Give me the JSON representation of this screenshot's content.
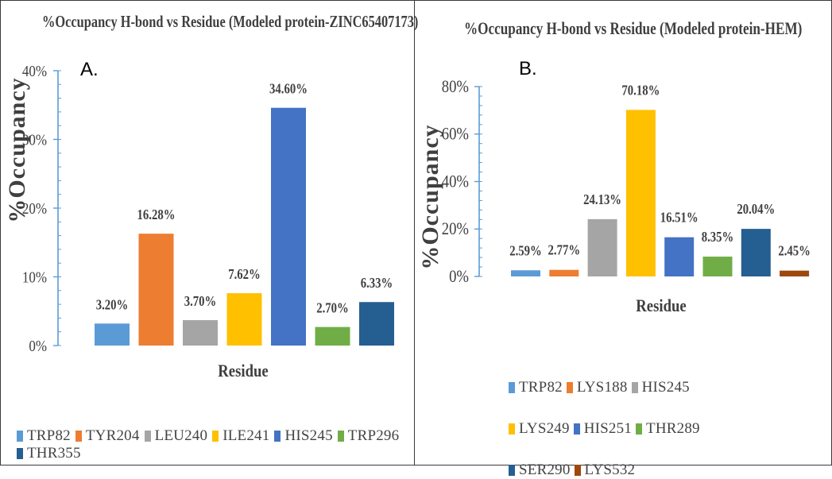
{
  "chart_data": [
    {
      "type": "bar",
      "panel_label": "A.",
      "title": "%Occupancy H-bond vs Residue (Modeled protein-ZINC65407173)",
      "xlabel": "Residue",
      "ylabel": "%Occupancy",
      "ylim": [
        0,
        40
      ],
      "yticks": [
        "0%",
        "10%",
        "20%",
        "30%",
        "40%"
      ],
      "grid": false,
      "legend_position": "bottom",
      "categories": [
        "TRP82",
        "TYR204",
        "LEU240",
        "ILE241",
        "HIS245",
        "TRP296",
        "THR355"
      ],
      "values": [
        3.2,
        16.28,
        3.7,
        7.62,
        34.6,
        2.7,
        6.33
      ],
      "data_labels": [
        "3.20%",
        "16.28%",
        "3.70%",
        "7.62%",
        "34.60%",
        "2.70%",
        "6.33%"
      ],
      "colors": [
        "#5b9bd5",
        "#ed7d31",
        "#a5a5a5",
        "#ffc000",
        "#4472c4",
        "#70ad47",
        "#255e91"
      ]
    },
    {
      "type": "bar",
      "panel_label": "B.",
      "title": "%Occupancy H-bond vs Residue (Modeled protein-HEM)",
      "xlabel": "Residue",
      "ylabel": "%Occupancy",
      "ylim": [
        0,
        80
      ],
      "yticks": [
        "0%",
        "20%",
        "40%",
        "60%",
        "80%"
      ],
      "grid": false,
      "legend_position": "bottom",
      "categories": [
        "TRP82",
        "LYS188",
        "HIS245",
        "LYS249",
        "HIS251",
        "THR289",
        "SER290",
        "LYS532"
      ],
      "values": [
        2.59,
        2.77,
        24.13,
        70.18,
        16.51,
        8.35,
        20.04,
        2.45
      ],
      "data_labels": [
        "2.59%",
        "2.77%",
        "24.13%",
        "70.18%",
        "16.51%",
        "8.35%",
        "20.04%",
        "2.45%"
      ],
      "colors": [
        "#5b9bd5",
        "#ed7d31",
        "#a5a5a5",
        "#ffc000",
        "#4472c4",
        "#70ad47",
        "#255e91",
        "#9e480e"
      ]
    }
  ],
  "axis_color": "#5b9bd5"
}
